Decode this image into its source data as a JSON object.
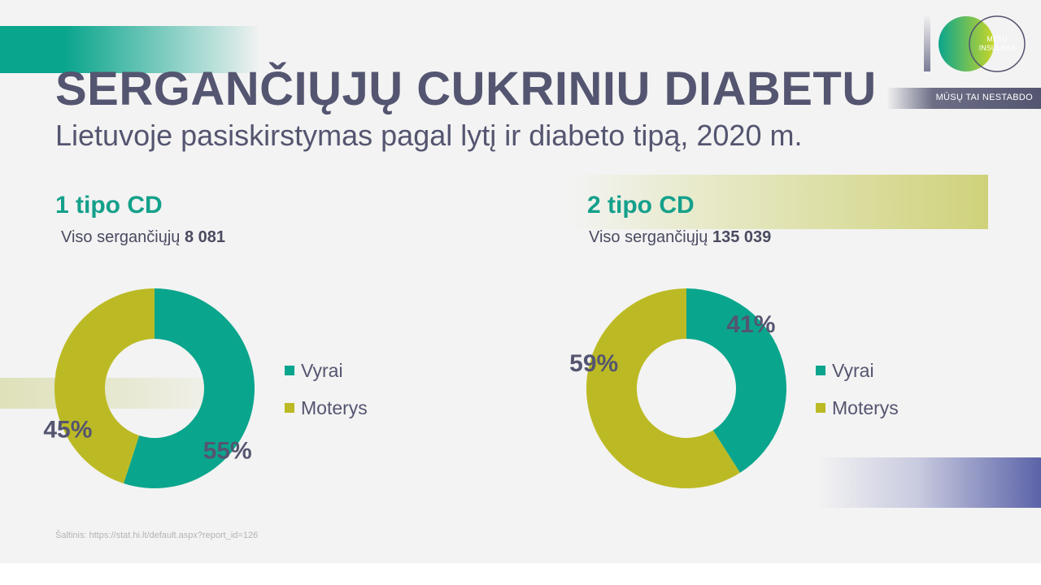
{
  "title": "SERGANČIŲJŲ CUKRINIU DIABETU",
  "subtitle": "Lietuvoje pasiskirstymas pagal lytį ir diabeto tipą, 2020 m.",
  "logo": {
    "line1": "METŲ",
    "line2": "INSULINUI",
    "tagline": "MŪSŲ TAI NESTABDO"
  },
  "colors": {
    "male": "#0aa58d",
    "female": "#bcba24",
    "text": "#545570",
    "accent": "#14a08b"
  },
  "source": "Šaltinis: https://stat.hi.lt/default.aspx?report_id=126",
  "chart_data": [
    {
      "type": "pie",
      "title": "1 tipo CD",
      "total_label": "Viso sergančiųjų",
      "total_value": "8 081",
      "categories": [
        "Vyrai",
        "Moterys"
      ],
      "values": [
        55,
        45
      ],
      "labels": [
        "55%",
        "45%"
      ],
      "legend_position": "right"
    },
    {
      "type": "pie",
      "title": "2 tipo CD",
      "total_label": "Viso sergančiųjų",
      "total_value": "135 039",
      "categories": [
        "Vyrai",
        "Moterys"
      ],
      "values": [
        41,
        59
      ],
      "labels": [
        "41%",
        "59%"
      ],
      "legend_position": "right"
    }
  ]
}
